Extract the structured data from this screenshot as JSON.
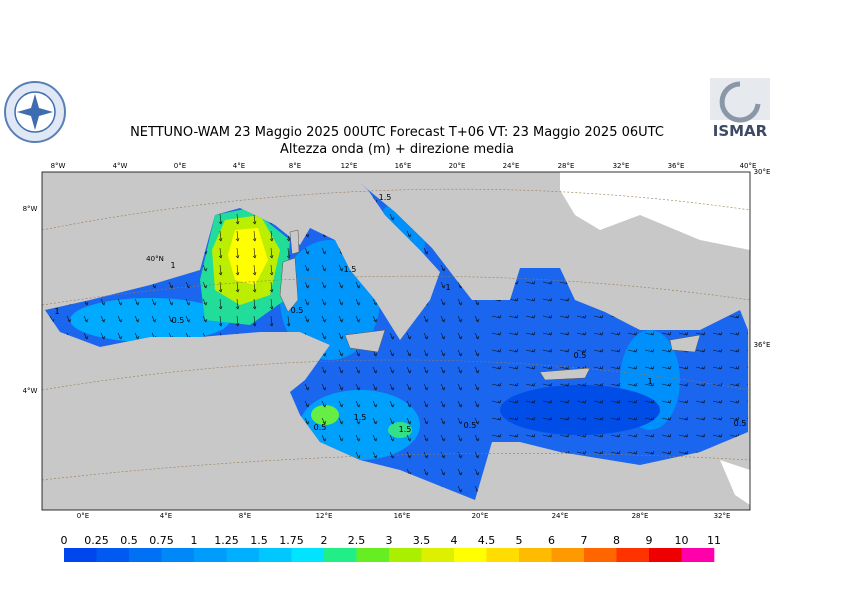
{
  "header": {
    "title": "NETTUNO-WAM  23   Maggio  2025 00UTC Forecast T+06 VT: 23   Maggio  2025 06UTC",
    "subtitle": "Altezza onda (m) + direzione media",
    "logo_right": "ISMAR"
  },
  "map": {
    "top_labels": [
      "8°W",
      "4°W",
      "0°E",
      "4°E",
      "8°E",
      "12°E",
      "16°E",
      "20°E",
      "24°E",
      "28°E",
      "32°E",
      "36°E",
      "40°E"
    ],
    "bottom_labels": [
      "0°E",
      "4°E",
      "8°E",
      "12°E",
      "16°E",
      "20°E",
      "24°E",
      "28°E",
      "32°E"
    ],
    "left_labels": [
      "8°W",
      "40°N",
      "4°W"
    ],
    "right_labels": [
      "30°E",
      "36°E"
    ],
    "contour_labels": [
      "1",
      "0.5",
      "1.5",
      "1",
      "1.5",
      "0.5",
      "1",
      "0.5",
      "1.5",
      "1.5",
      "0.5",
      "0.5",
      "1",
      "0.5"
    ]
  },
  "colorbar": {
    "labels": [
      "0",
      "0.25",
      "0.5",
      "0.75",
      "1",
      "1.25",
      "1.5",
      "1.75",
      "2",
      "2.5",
      "3",
      "3.5",
      "4",
      "4.5",
      "5",
      "6",
      "7",
      "8",
      "9",
      "10",
      "11"
    ],
    "colors": [
      "#0046ee",
      "#005af2",
      "#0070f5",
      "#0088f8",
      "#009cfb",
      "#00b0ff",
      "#00c8ff",
      "#00e4ff",
      "#22ee88",
      "#66ee22",
      "#aaee00",
      "#ddf000",
      "#ffff00",
      "#ffdd00",
      "#ffbb00",
      "#ff9900",
      "#ff6600",
      "#ff3300",
      "#ee0000",
      "#ff00aa"
    ]
  }
}
